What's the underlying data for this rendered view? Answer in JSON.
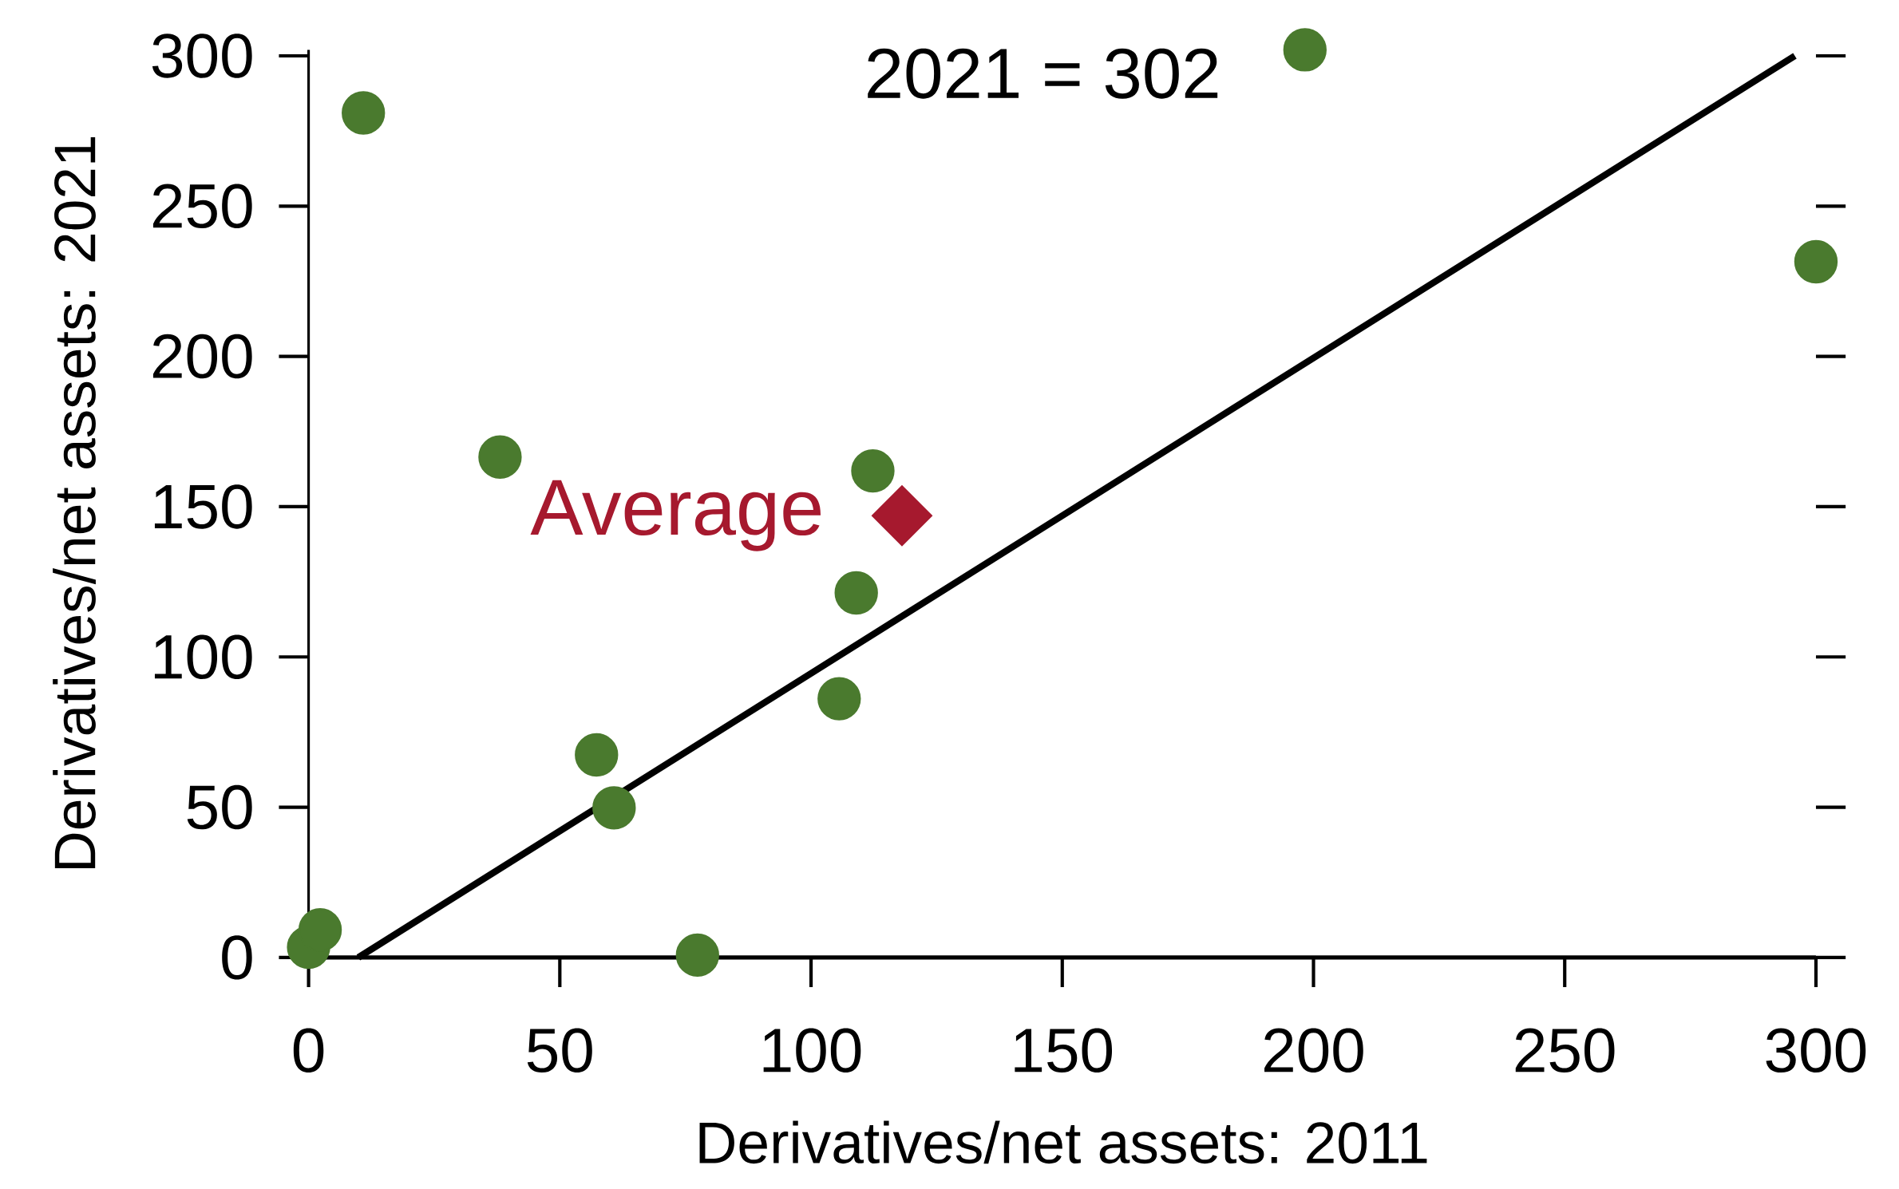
{
  "chart_data": {
    "type": "scatter",
    "xlabel": "Derivatives/net assets: 2011",
    "ylabel": "Derivatives/net assets: 2021",
    "xlim": [
      0,
      300
    ],
    "ylim": [
      0,
      302
    ],
    "xticks": [
      0,
      50,
      100,
      150,
      200,
      250,
      300
    ],
    "yticks": [
      0,
      50,
      100,
      150,
      200,
      250,
      300
    ],
    "grid": false,
    "series": [
      {
        "color": "#4a7a2e",
        "marker": "circle",
        "x": [
          10.9,
          38.1,
          57.3,
          60.8,
          77.4,
          0,
          2.3,
          105.6,
          109,
          112.3,
          198.3,
          300
        ],
        "values": [
          281,
          166.5,
          67.4,
          49.8,
          0.8,
          3.4,
          9.2,
          86.1,
          121.3,
          161.9,
          302,
          231.5
        ]
      },
      {
        "name": "Average",
        "color": "#a6192e",
        "marker": "diamond",
        "x": [
          118.1
        ],
        "values": [
          147
        ]
      },
      {
        "type": "line",
        "color": "#000000",
        "marker": "none",
        "x": [
          9.9,
          295.8
        ],
        "values": [
          0,
          300
        ]
      }
    ],
    "annotations": [
      {
        "text": "2021 = 302",
        "x": 198.3,
        "y": 302
      }
    ]
  }
}
